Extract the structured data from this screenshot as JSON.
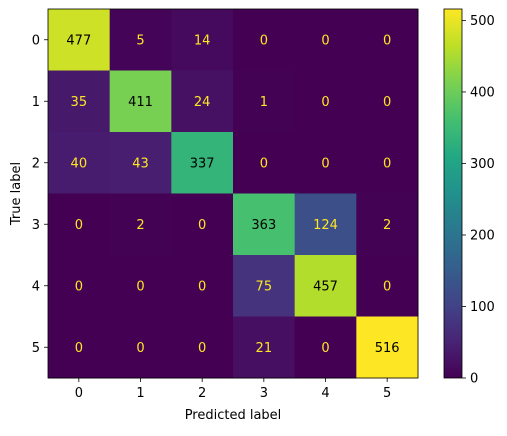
{
  "chart_data": {
    "type": "heatmap",
    "colormap": "viridis",
    "x_categories": [
      "0",
      "1",
      "2",
      "3",
      "4",
      "5"
    ],
    "y_categories": [
      "0",
      "1",
      "2",
      "3",
      "4",
      "5"
    ],
    "xlabel": "Predicted label",
    "ylabel": "True label",
    "matrix": [
      [
        477,
        5,
        14,
        0,
        0,
        0
      ],
      [
        35,
        411,
        24,
        1,
        0,
        0
      ],
      [
        40,
        43,
        337,
        0,
        0,
        0
      ],
      [
        0,
        2,
        0,
        363,
        124,
        2
      ],
      [
        0,
        0,
        0,
        75,
        457,
        0
      ],
      [
        0,
        0,
        0,
        21,
        0,
        516
      ]
    ],
    "colorbar": {
      "range": [
        0,
        516
      ],
      "ticks": [
        0,
        100,
        200,
        300,
        400,
        500
      ],
      "tick_labels": [
        "0",
        "100",
        "200",
        "300",
        "400",
        "500"
      ]
    },
    "grid": false,
    "text_color_dark_cells": "#fde725",
    "text_color_light_cells": "#000000"
  }
}
